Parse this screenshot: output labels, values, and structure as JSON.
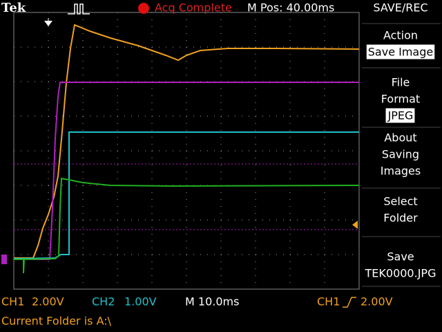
{
  "header": {
    "brand": "Tek",
    "status": "Acq Complete",
    "position": "M Pos: 40.00ms",
    "menu_title": "SAVE/REC"
  },
  "menu": [
    {
      "lines": [
        "Action"
      ],
      "value": "Save Image"
    },
    {
      "lines": [
        "File",
        "Format"
      ],
      "value": "JPEG"
    },
    {
      "lines": [
        "About",
        "Saving",
        "Images"
      ]
    },
    {
      "lines": [
        "Select",
        "Folder"
      ]
    },
    {
      "lines": [
        "Save"
      ],
      "value": "TEK0000.JPG"
    }
  ],
  "footer": {
    "ch1_label": "CH1",
    "ch1_scale": "2.00V",
    "ch2_label": "CH2",
    "ch2_scale": "1.00V",
    "timebase": "M 10.0ms",
    "trigger_source": "CH1",
    "trigger_level": "2.00V",
    "folder": "Current Folder is A:\\"
  }
}
